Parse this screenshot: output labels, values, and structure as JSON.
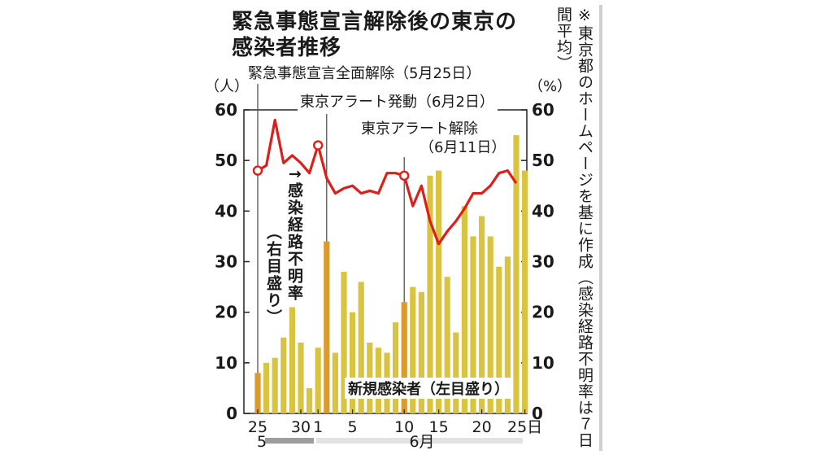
{
  "title_lines": [
    "緊急事態宣言解除後の東京の",
    "感染者推移"
  ],
  "source_note": "※東京都のホームページを基に作成（感染経路不明率は７日間平均）",
  "chart_data": {
    "type": "bar",
    "title": "緊急事態宣言解除後の東京の感染者推移",
    "left_axis_unit": "（人）",
    "right_axis_unit": "（%）",
    "ylim": [
      0,
      60
    ],
    "y_ticks": [
      0,
      10,
      20,
      30,
      40,
      50,
      60
    ],
    "x_tick_labels": [
      {
        "day": 25,
        "label": "25"
      },
      {
        "day": 30,
        "label": "30"
      },
      {
        "day": 32,
        "label": "1"
      },
      {
        "day": 36,
        "label": "5"
      },
      {
        "day": 42,
        "label": "10"
      },
      {
        "day": 46,
        "label": "15"
      },
      {
        "day": 51,
        "label": "20"
      },
      {
        "day": 56,
        "label": "25日"
      }
    ],
    "month_labels": [
      {
        "day": 25,
        "label": "5"
      },
      {
        "day": 44,
        "label": "6月"
      }
    ],
    "series": [
      {
        "name": "新規感染者（左目盛り）",
        "kind": "bar",
        "axis": "left",
        "dates": [
          "5/25",
          "5/26",
          "5/27",
          "5/28",
          "5/29",
          "5/30",
          "5/31",
          "6/1",
          "6/2",
          "6/3",
          "6/4",
          "6/5",
          "6/6",
          "6/7",
          "6/8",
          "6/9",
          "6/10",
          "6/11",
          "6/12",
          "6/13",
          "6/14",
          "6/15",
          "6/16",
          "6/17",
          "6/18",
          "6/19",
          "6/20",
          "6/21",
          "6/22",
          "6/23",
          "6/24",
          "6/25"
        ],
        "values": [
          8,
          10,
          11,
          15,
          21,
          14,
          5,
          13,
          34,
          12,
          28,
          20,
          26,
          14,
          13,
          12,
          18,
          22,
          25,
          24,
          47,
          48,
          27,
          16,
          41,
          35,
          39,
          35,
          29,
          31,
          55,
          48
        ],
        "highlight_dates": [
          "5/25",
          "6/2",
          "6/11"
        ]
      },
      {
        "name": "感染経路不明率（右目盛り）",
        "kind": "line",
        "axis": "right",
        "dates": [
          "5/25",
          "5/26",
          "5/27",
          "5/28",
          "5/29",
          "5/30",
          "5/31",
          "6/1",
          "6/2",
          "6/3",
          "6/4",
          "6/5",
          "6/6",
          "6/7",
          "6/8",
          "6/9",
          "6/10",
          "6/11",
          "6/12",
          "6/13",
          "6/14",
          "6/15",
          "6/16",
          "6/17",
          "6/18",
          "6/19",
          "6/20",
          "6/21",
          "6/22",
          "6/23",
          "6/24"
        ],
        "values": [
          48,
          49,
          58,
          49.5,
          51,
          49.5,
          47.5,
          53,
          46.5,
          43.5,
          44.5,
          45,
          43.5,
          44,
          43.5,
          47.5,
          47.5,
          47,
          41,
          45,
          38,
          33.5,
          36,
          38,
          40.5,
          43.5,
          43.5,
          45,
          47.5,
          48,
          45.5
        ],
        "marked_dates": [
          "5/25",
          "6/1",
          "6/11"
        ]
      }
    ],
    "annotations": [
      {
        "text": "緊急事態宣言全面解除（5月25日）",
        "date": "5/25"
      },
      {
        "text": "東京アラート発動（6月2日）",
        "date": "6/2"
      },
      {
        "text": "東京アラート解除",
        "sub": "（6月11日）",
        "date": "6/11"
      },
      {
        "text": "↑感染経路不明率",
        "sub": "（右目盛り）"
      },
      {
        "text": "新規感染者（左目盛り）"
      }
    ],
    "colors": {
      "bar": "#d9c441",
      "bar_highlight": "#db9a2c",
      "line": "#dc1f1a",
      "grid": "#222222",
      "gray_band": "#9d9d9d",
      "light_band": "#e2e2e2"
    }
  }
}
